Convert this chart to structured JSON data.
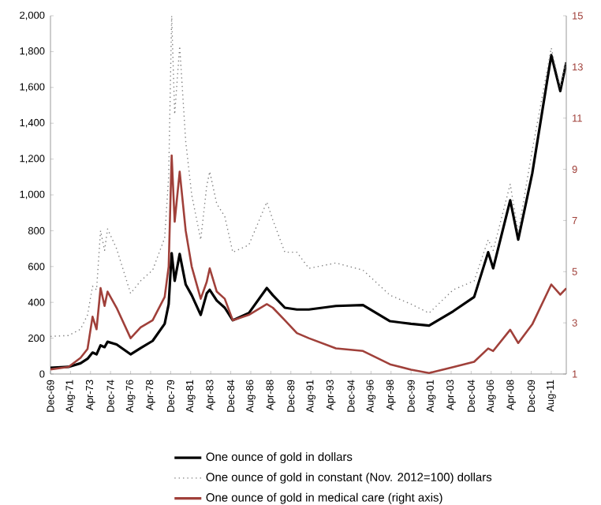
{
  "chart_data": {
    "type": "line",
    "x": [
      "1969-12",
      "1971-06",
      "1972-06",
      "1973-01",
      "1973-06",
      "1973-10",
      "1974-02",
      "1974-06",
      "1974-09",
      "1975-06",
      "1976-08",
      "1977-06",
      "1978-06",
      "1979-06",
      "1979-10",
      "1980-01",
      "1980-04",
      "1980-09",
      "1981-03",
      "1981-09",
      "1982-06",
      "1982-12",
      "1983-03",
      "1983-10",
      "1984-06",
      "1985-02",
      "1986-06",
      "1987-12",
      "1988-06",
      "1989-06",
      "1990-06",
      "1991-06",
      "1993-09",
      "1995-12",
      "1998-03",
      "1999-12",
      "2001-06",
      "2003-06",
      "2005-03",
      "2006-05",
      "2006-10",
      "2008-03",
      "2008-11",
      "2010-01",
      "2011-08",
      "2012-05",
      "2012-11"
    ],
    "series": [
      {
        "name": "One ounce of gold in dollars",
        "color": "#000000",
        "values": [
          35,
          40,
          60,
          85,
          120,
          110,
          160,
          150,
          180,
          165,
          110,
          145,
          185,
          280,
          390,
          675,
          520,
          670,
          500,
          440,
          330,
          450,
          470,
          410,
          370,
          300,
          340,
          480,
          440,
          370,
          360,
          360,
          380,
          385,
          295,
          280,
          270,
          350,
          430,
          680,
          590,
          970,
          750,
          1120,
          1780,
          1580,
          1740
        ]
      },
      {
        "name": "One ounce of gold in constant (Nov. 2012=100) dollars",
        "color": "#808080",
        "line_style": "dotted",
        "values": [
          210,
          215,
          250,
          330,
          490,
          470,
          800,
          690,
          810,
          700,
          450,
          520,
          580,
          760,
          1100,
          2000,
          1450,
          1830,
          1300,
          1000,
          750,
          1050,
          1130,
          950,
          880,
          680,
          720,
          960,
          860,
          680,
          680,
          590,
          620,
          580,
          440,
          390,
          340,
          470,
          520,
          750,
          690,
          1060,
          790,
          1250,
          1820,
          1600,
          1750
        ]
      },
      {
        "name": "One ounce of gold in medical care (right axis)",
        "color": "#a0403a",
        "axis": "y2",
        "values": [
          1.18,
          1.28,
          1.63,
          1.98,
          3.24,
          2.75,
          4.36,
          3.66,
          4.22,
          3.59,
          2.4,
          2.82,
          3.1,
          4.01,
          5.2,
          9.54,
          6.95,
          8.91,
          6.6,
          5.2,
          3.94,
          4.6,
          5.13,
          4.22,
          3.94,
          3.1,
          3.31,
          3.73,
          3.59,
          3.1,
          2.6,
          2.4,
          2.0,
          1.9,
          1.38,
          1.17,
          1.04,
          1.27,
          1.48,
          2.0,
          1.9,
          2.73,
          2.21,
          2.94,
          4.5,
          4.1,
          4.35
        ]
      }
    ],
    "xlim": [
      "1969-12",
      "2012-11"
    ],
    "xticks": [
      {
        "value": "1969-12",
        "label": "Dec-69"
      },
      {
        "value": "1971-08",
        "label": "Aug-71"
      },
      {
        "value": "1973-04",
        "label": "Apr-73"
      },
      {
        "value": "1974-12",
        "label": "Dec-74"
      },
      {
        "value": "1976-08",
        "label": "Aug-76"
      },
      {
        "value": "1978-04",
        "label": "Apr-78"
      },
      {
        "value": "1979-12",
        "label": "Dec-79"
      },
      {
        "value": "1981-08",
        "label": "Aug-81"
      },
      {
        "value": "1983-04",
        "label": "Apr-83"
      },
      {
        "value": "1984-12",
        "label": "Dec-84"
      },
      {
        "value": "1986-08",
        "label": "Aug-86"
      },
      {
        "value": "1988-04",
        "label": "Apr-88"
      },
      {
        "value": "1989-12",
        "label": "Dec-89"
      },
      {
        "value": "1991-08",
        "label": "Aug-91"
      },
      {
        "value": "1993-04",
        "label": "Apr-93"
      },
      {
        "value": "1994-12",
        "label": "Dec-94"
      },
      {
        "value": "1996-08",
        "label": "Aug-96"
      },
      {
        "value": "1998-04",
        "label": "Apr-98"
      },
      {
        "value": "1999-12",
        "label": "Dec-99"
      },
      {
        "value": "2001-08",
        "label": "Aug-01"
      },
      {
        "value": "2003-04",
        "label": "Apr-03"
      },
      {
        "value": "2004-12",
        "label": "Dec-04"
      },
      {
        "value": "2006-08",
        "label": "Aug-06"
      },
      {
        "value": "2008-04",
        "label": "Apr-08"
      },
      {
        "value": "2009-12",
        "label": "Dec-09"
      },
      {
        "value": "2011-08",
        "label": "Aug-11"
      }
    ],
    "ylim": [
      0,
      2000
    ],
    "yticks": [
      0,
      200,
      400,
      600,
      800,
      {
        "value": 1000,
        "label": "1,000"
      },
      {
        "value": 1200,
        "label": "1,200"
      },
      {
        "value": 1400,
        "label": "1,400"
      },
      {
        "value": 1600,
        "label": "1,600"
      },
      {
        "value": 1800,
        "label": "1,800"
      },
      {
        "value": 2000,
        "label": "2,000"
      }
    ],
    "y2lim": [
      1,
      15
    ],
    "y2ticks": [
      1,
      3,
      5,
      7,
      9,
      11,
      13,
      15
    ],
    "legend": "bottom",
    "grid": false,
    "marker": "none"
  }
}
